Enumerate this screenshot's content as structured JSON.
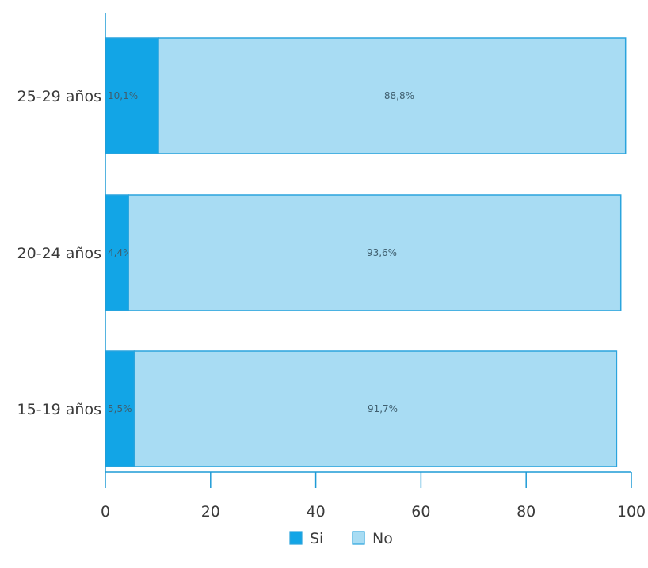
{
  "chart_data": {
    "type": "bar",
    "orientation": "horizontal",
    "stacked": true,
    "categories": [
      "25-29 años",
      "20-24 años",
      "15-19 años"
    ],
    "series": [
      {
        "name": "Si",
        "values": [
          10.1,
          4.4,
          5.5
        ],
        "labels": [
          "10,1%",
          "4,4%",
          "5,5%"
        ]
      },
      {
        "name": "No",
        "values": [
          88.8,
          93.6,
          91.7
        ],
        "labels": [
          "88,8%",
          "93,6%",
          "91,7%"
        ]
      }
    ],
    "xlim": [
      0,
      100
    ],
    "xticks": [
      0,
      20,
      40,
      60,
      80,
      100
    ],
    "xtick_labels": [
      "0",
      "20",
      "40",
      "60",
      "80",
      "100"
    ],
    "title": "",
    "xlabel": "",
    "ylabel": "",
    "grid": false,
    "legend_position": "bottom-center",
    "colors": {
      "Si": "#12a5e6",
      "No": "#a8dcf3",
      "bar_border": "#2aa4dd",
      "axis": "#1f9bd6"
    }
  }
}
